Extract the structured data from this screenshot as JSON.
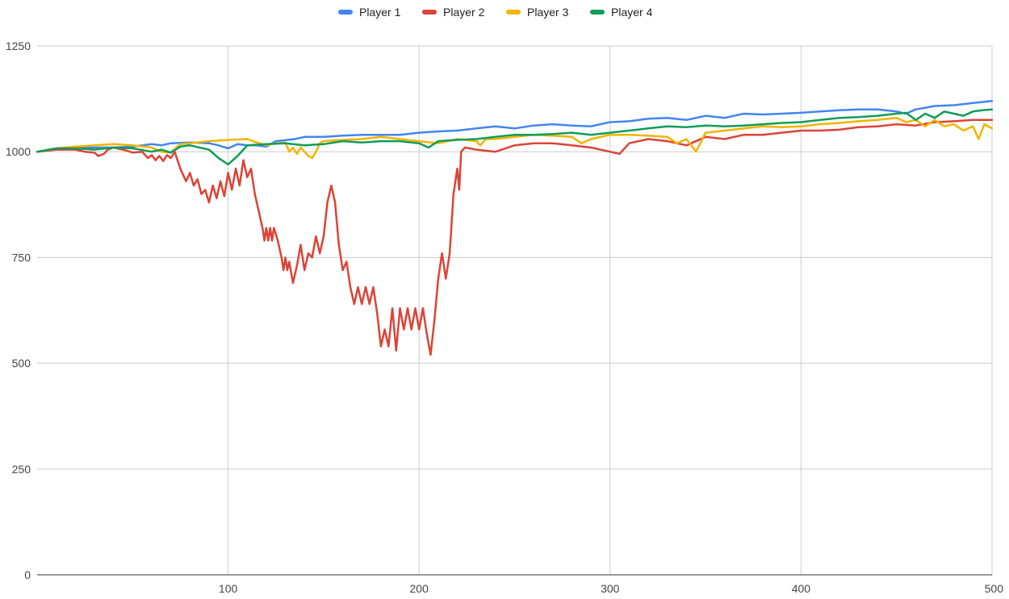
{
  "chart_data": {
    "type": "line",
    "title": "",
    "xlabel": "",
    "ylabel": "",
    "xlim": [
      0,
      500
    ],
    "ylim": [
      0,
      1250
    ],
    "x_ticks": [
      100,
      200,
      300,
      400,
      500
    ],
    "y_ticks": [
      0,
      250,
      500,
      750,
      1000,
      1250
    ],
    "grid": true,
    "legend_position": "top",
    "series": [
      {
        "name": "Player 1",
        "color": "#4285f4",
        "points": [
          [
            0,
            1000
          ],
          [
            10,
            1005
          ],
          [
            20,
            1008
          ],
          [
            30,
            1010
          ],
          [
            40,
            1010
          ],
          [
            50,
            1012
          ],
          [
            60,
            1018
          ],
          [
            65,
            1015
          ],
          [
            70,
            1020
          ],
          [
            80,
            1022
          ],
          [
            90,
            1020
          ],
          [
            95,
            1015
          ],
          [
            100,
            1008
          ],
          [
            105,
            1018
          ],
          [
            110,
            1015
          ],
          [
            115,
            1015
          ],
          [
            120,
            1012
          ],
          [
            125,
            1025
          ],
          [
            135,
            1030
          ],
          [
            140,
            1035
          ],
          [
            150,
            1035
          ],
          [
            160,
            1038
          ],
          [
            170,
            1040
          ],
          [
            180,
            1040
          ],
          [
            190,
            1040
          ],
          [
            200,
            1045
          ],
          [
            210,
            1048
          ],
          [
            220,
            1050
          ],
          [
            230,
            1055
          ],
          [
            240,
            1060
          ],
          [
            250,
            1055
          ],
          [
            260,
            1062
          ],
          [
            270,
            1065
          ],
          [
            280,
            1062
          ],
          [
            290,
            1060
          ],
          [
            300,
            1070
          ],
          [
            310,
            1072
          ],
          [
            320,
            1078
          ],
          [
            330,
            1080
          ],
          [
            340,
            1075
          ],
          [
            350,
            1085
          ],
          [
            360,
            1080
          ],
          [
            370,
            1090
          ],
          [
            380,
            1088
          ],
          [
            390,
            1090
          ],
          [
            400,
            1092
          ],
          [
            410,
            1095
          ],
          [
            420,
            1098
          ],
          [
            430,
            1100
          ],
          [
            440,
            1100
          ],
          [
            450,
            1095
          ],
          [
            455,
            1090
          ],
          [
            460,
            1100
          ],
          [
            470,
            1108
          ],
          [
            480,
            1110
          ],
          [
            490,
            1115
          ],
          [
            500,
            1120
          ]
        ]
      },
      {
        "name": "Player 2",
        "color": "#db4437",
        "points": [
          [
            0,
            1000
          ],
          [
            10,
            1005
          ],
          [
            20,
            1005
          ],
          [
            25,
            1000
          ],
          [
            30,
            998
          ],
          [
            32,
            990
          ],
          [
            35,
            995
          ],
          [
            37,
            1005
          ],
          [
            40,
            1010
          ],
          [
            45,
            1005
          ],
          [
            50,
            998
          ],
          [
            55,
            1000
          ],
          [
            58,
            985
          ],
          [
            60,
            992
          ],
          [
            62,
            980
          ],
          [
            64,
            990
          ],
          [
            66,
            978
          ],
          [
            68,
            992
          ],
          [
            70,
            985
          ],
          [
            72,
            1000
          ],
          [
            75,
            960
          ],
          [
            78,
            930
          ],
          [
            80,
            950
          ],
          [
            82,
            920
          ],
          [
            84,
            935
          ],
          [
            86,
            900
          ],
          [
            88,
            910
          ],
          [
            90,
            880
          ],
          [
            92,
            920
          ],
          [
            94,
            890
          ],
          [
            96,
            930
          ],
          [
            98,
            895
          ],
          [
            100,
            950
          ],
          [
            102,
            910
          ],
          [
            104,
            960
          ],
          [
            106,
            920
          ],
          [
            108,
            980
          ],
          [
            110,
            940
          ],
          [
            112,
            960
          ],
          [
            114,
            900
          ],
          [
            116,
            860
          ],
          [
            118,
            820
          ],
          [
            119,
            790
          ],
          [
            120,
            820
          ],
          [
            121,
            790
          ],
          [
            122,
            820
          ],
          [
            123,
            790
          ],
          [
            124,
            820
          ],
          [
            126,
            790
          ],
          [
            128,
            750
          ],
          [
            129,
            720
          ],
          [
            130,
            750
          ],
          [
            131,
            720
          ],
          [
            132,
            740
          ],
          [
            134,
            690
          ],
          [
            136,
            730
          ],
          [
            138,
            780
          ],
          [
            140,
            720
          ],
          [
            142,
            760
          ],
          [
            144,
            750
          ],
          [
            146,
            800
          ],
          [
            148,
            760
          ],
          [
            150,
            800
          ],
          [
            152,
            880
          ],
          [
            154,
            920
          ],
          [
            156,
            880
          ],
          [
            158,
            780
          ],
          [
            160,
            720
          ],
          [
            162,
            740
          ],
          [
            164,
            680
          ],
          [
            166,
            640
          ],
          [
            168,
            680
          ],
          [
            170,
            640
          ],
          [
            172,
            680
          ],
          [
            174,
            640
          ],
          [
            176,
            680
          ],
          [
            178,
            620
          ],
          [
            180,
            540
          ],
          [
            182,
            580
          ],
          [
            184,
            540
          ],
          [
            186,
            630
          ],
          [
            188,
            530
          ],
          [
            190,
            630
          ],
          [
            192,
            580
          ],
          [
            194,
            630
          ],
          [
            196,
            580
          ],
          [
            198,
            630
          ],
          [
            200,
            580
          ],
          [
            202,
            630
          ],
          [
            204,
            570
          ],
          [
            206,
            520
          ],
          [
            208,
            600
          ],
          [
            210,
            700
          ],
          [
            212,
            760
          ],
          [
            214,
            700
          ],
          [
            216,
            760
          ],
          [
            218,
            900
          ],
          [
            220,
            960
          ],
          [
            221,
            910
          ],
          [
            222,
            1000
          ],
          [
            224,
            1010
          ],
          [
            230,
            1005
          ],
          [
            240,
            1000
          ],
          [
            250,
            1015
          ],
          [
            260,
            1020
          ],
          [
            270,
            1020
          ],
          [
            280,
            1015
          ],
          [
            290,
            1010
          ],
          [
            300,
            1000
          ],
          [
            305,
            995
          ],
          [
            310,
            1020
          ],
          [
            320,
            1030
          ],
          [
            330,
            1025
          ],
          [
            340,
            1015
          ],
          [
            350,
            1035
          ],
          [
            360,
            1030
          ],
          [
            370,
            1040
          ],
          [
            380,
            1040
          ],
          [
            390,
            1045
          ],
          [
            400,
            1050
          ],
          [
            410,
            1050
          ],
          [
            420,
            1052
          ],
          [
            430,
            1058
          ],
          [
            440,
            1060
          ],
          [
            450,
            1065
          ],
          [
            460,
            1062
          ],
          [
            470,
            1070
          ],
          [
            480,
            1072
          ],
          [
            490,
            1075
          ],
          [
            500,
            1075
          ]
        ]
      },
      {
        "name": "Player 3",
        "color": "#f4b400",
        "points": [
          [
            0,
            1000
          ],
          [
            10,
            1008
          ],
          [
            20,
            1012
          ],
          [
            30,
            1015
          ],
          [
            40,
            1018
          ],
          [
            50,
            1015
          ],
          [
            60,
            1010
          ],
          [
            65,
            1000
          ],
          [
            70,
            998
          ],
          [
            75,
            1018
          ],
          [
            80,
            1020
          ],
          [
            90,
            1025
          ],
          [
            100,
            1028
          ],
          [
            110,
            1030
          ],
          [
            115,
            1022
          ],
          [
            120,
            1015
          ],
          [
            125,
            1020
          ],
          [
            130,
            1022
          ],
          [
            132,
            1000
          ],
          [
            134,
            1010
          ],
          [
            136,
            995
          ],
          [
            138,
            1010
          ],
          [
            140,
            1000
          ],
          [
            142,
            990
          ],
          [
            144,
            985
          ],
          [
            146,
            1000
          ],
          [
            148,
            1020
          ],
          [
            150,
            1025
          ],
          [
            160,
            1028
          ],
          [
            170,
            1030
          ],
          [
            180,
            1035
          ],
          [
            190,
            1030
          ],
          [
            200,
            1025
          ],
          [
            210,
            1020
          ],
          [
            220,
            1030
          ],
          [
            230,
            1025
          ],
          [
            232,
            1015
          ],
          [
            235,
            1030
          ],
          [
            240,
            1030
          ],
          [
            250,
            1035
          ],
          [
            260,
            1040
          ],
          [
            270,
            1038
          ],
          [
            280,
            1035
          ],
          [
            285,
            1020
          ],
          [
            290,
            1030
          ],
          [
            300,
            1040
          ],
          [
            310,
            1040
          ],
          [
            320,
            1038
          ],
          [
            330,
            1035
          ],
          [
            335,
            1020
          ],
          [
            340,
            1030
          ],
          [
            345,
            1000
          ],
          [
            350,
            1045
          ],
          [
            360,
            1050
          ],
          [
            370,
            1055
          ],
          [
            380,
            1060
          ],
          [
            390,
            1058
          ],
          [
            400,
            1060
          ],
          [
            410,
            1065
          ],
          [
            420,
            1068
          ],
          [
            430,
            1072
          ],
          [
            440,
            1075
          ],
          [
            450,
            1080
          ],
          [
            455,
            1070
          ],
          [
            460,
            1075
          ],
          [
            465,
            1060
          ],
          [
            470,
            1075
          ],
          [
            475,
            1060
          ],
          [
            480,
            1065
          ],
          [
            485,
            1050
          ],
          [
            490,
            1060
          ],
          [
            493,
            1030
          ],
          [
            496,
            1065
          ],
          [
            500,
            1055
          ]
        ]
      },
      {
        "name": "Player 4",
        "color": "#0f9d58",
        "points": [
          [
            0,
            1000
          ],
          [
            10,
            1008
          ],
          [
            20,
            1008
          ],
          [
            30,
            1005
          ],
          [
            40,
            1010
          ],
          [
            50,
            1008
          ],
          [
            60,
            1000
          ],
          [
            65,
            1005
          ],
          [
            70,
            998
          ],
          [
            75,
            1012
          ],
          [
            80,
            1015
          ],
          [
            85,
            1010
          ],
          [
            90,
            1005
          ],
          [
            95,
            985
          ],
          [
            100,
            970
          ],
          [
            105,
            990
          ],
          [
            108,
            1005
          ],
          [
            110,
            1015
          ],
          [
            120,
            1018
          ],
          [
            130,
            1020
          ],
          [
            140,
            1015
          ],
          [
            150,
            1018
          ],
          [
            160,
            1025
          ],
          [
            170,
            1022
          ],
          [
            180,
            1025
          ],
          [
            190,
            1025
          ],
          [
            200,
            1020
          ],
          [
            205,
            1010
          ],
          [
            210,
            1025
          ],
          [
            220,
            1028
          ],
          [
            230,
            1030
          ],
          [
            240,
            1035
          ],
          [
            250,
            1040
          ],
          [
            260,
            1040
          ],
          [
            270,
            1042
          ],
          [
            280,
            1045
          ],
          [
            290,
            1040
          ],
          [
            300,
            1045
          ],
          [
            310,
            1050
          ],
          [
            320,
            1055
          ],
          [
            330,
            1060
          ],
          [
            340,
            1058
          ],
          [
            350,
            1062
          ],
          [
            360,
            1060
          ],
          [
            370,
            1062
          ],
          [
            380,
            1065
          ],
          [
            390,
            1068
          ],
          [
            400,
            1070
          ],
          [
            410,
            1075
          ],
          [
            420,
            1080
          ],
          [
            430,
            1082
          ],
          [
            440,
            1085
          ],
          [
            450,
            1090
          ],
          [
            455,
            1092
          ],
          [
            460,
            1075
          ],
          [
            465,
            1090
          ],
          [
            470,
            1080
          ],
          [
            475,
            1095
          ],
          [
            480,
            1090
          ],
          [
            485,
            1085
          ],
          [
            490,
            1095
          ],
          [
            495,
            1098
          ],
          [
            500,
            1100
          ]
        ]
      }
    ]
  }
}
